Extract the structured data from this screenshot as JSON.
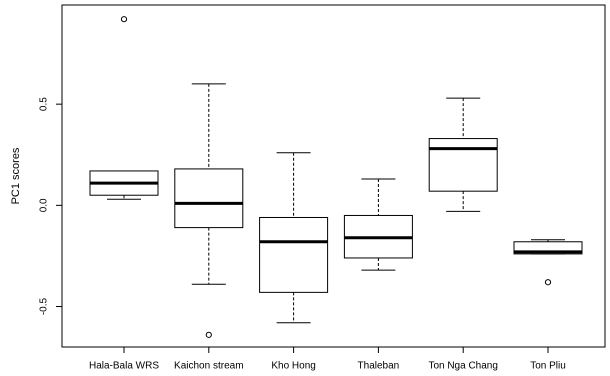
{
  "chart_data": {
    "type": "boxplot",
    "ylabel": "PC1 scores",
    "categories": [
      "Hala-Bala WRS",
      "Kaichon stream",
      "Kho Hong",
      "Thaleban",
      "Ton Nga Chang",
      "Ton Pliu"
    ],
    "boxes": [
      {
        "min": 0.03,
        "q1": 0.05,
        "median": 0.11,
        "q3": 0.17,
        "max": 0.17,
        "outliers": [
          0.92
        ]
      },
      {
        "min": -0.39,
        "q1": -0.11,
        "median": 0.01,
        "q3": 0.18,
        "max": 0.6,
        "outliers": [
          -0.64
        ]
      },
      {
        "min": -0.58,
        "q1": -0.43,
        "median": -0.18,
        "q3": -0.06,
        "max": 0.26,
        "outliers": []
      },
      {
        "min": -0.32,
        "q1": -0.26,
        "median": -0.16,
        "q3": -0.05,
        "max": 0.13,
        "outliers": []
      },
      {
        "min": -0.03,
        "q1": 0.07,
        "median": 0.28,
        "q3": 0.33,
        "max": 0.53,
        "outliers": []
      },
      {
        "min": -0.24,
        "q1": -0.24,
        "median": -0.23,
        "q3": -0.18,
        "max": -0.17,
        "outliers": [
          -0.38
        ]
      }
    ],
    "ylim": [
      -0.7,
      0.99
    ],
    "yticks": [
      -0.5,
      {
        "value": 0,
        "label": "0.0"
      },
      0.5
    ],
    "color": "#000000"
  }
}
